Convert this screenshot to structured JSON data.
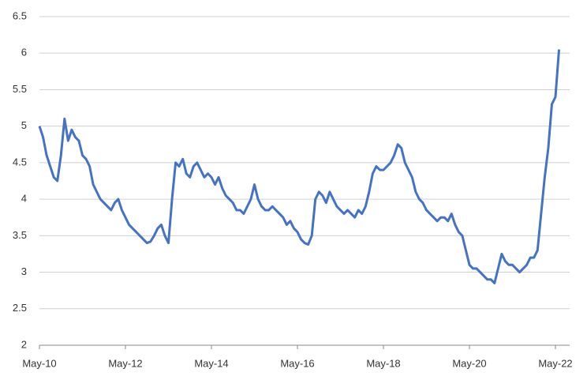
{
  "chart_data": {
    "type": "line",
    "categories": [
      "May-10",
      null,
      null,
      null,
      null,
      null,
      null,
      null,
      null,
      null,
      null,
      null,
      null,
      null,
      null,
      null,
      null,
      null,
      null,
      null,
      null,
      null,
      null,
      null,
      "May-12",
      null,
      null,
      null,
      null,
      null,
      null,
      null,
      null,
      null,
      null,
      null,
      null,
      null,
      null,
      null,
      null,
      null,
      null,
      null,
      null,
      null,
      null,
      null,
      "May-14",
      null,
      null,
      null,
      null,
      null,
      null,
      null,
      null,
      null,
      null,
      null,
      null,
      null,
      null,
      null,
      null,
      null,
      null,
      null,
      null,
      null,
      null,
      null,
      "May-16",
      null,
      null,
      null,
      null,
      null,
      null,
      null,
      null,
      null,
      null,
      null,
      null,
      null,
      null,
      null,
      null,
      null,
      null,
      null,
      null,
      null,
      null,
      null,
      "May-18",
      null,
      null,
      null,
      null,
      null,
      null,
      null,
      null,
      null,
      null,
      null,
      null,
      null,
      null,
      null,
      null,
      null,
      null,
      null,
      null,
      null,
      null,
      null,
      "May-20",
      null,
      null,
      null,
      null,
      null,
      null,
      null,
      null,
      null,
      null,
      null,
      null,
      null,
      null,
      null,
      null,
      null,
      null,
      null,
      null,
      null,
      null,
      null,
      "May-22",
      null
    ],
    "values": [
      5.0,
      4.85,
      4.6,
      4.45,
      4.3,
      4.25,
      4.6,
      5.1,
      4.8,
      4.95,
      4.85,
      4.8,
      4.6,
      4.55,
      4.45,
      4.2,
      4.1,
      4.0,
      3.95,
      3.9,
      3.85,
      3.95,
      4.0,
      3.85,
      3.75,
      3.65,
      3.6,
      3.55,
      3.5,
      3.45,
      3.4,
      3.42,
      3.5,
      3.6,
      3.65,
      3.5,
      3.4,
      4.0,
      4.5,
      4.45,
      4.55,
      4.35,
      4.3,
      4.45,
      4.5,
      4.4,
      4.3,
      4.35,
      4.3,
      4.2,
      4.3,
      4.15,
      4.05,
      4.0,
      3.95,
      3.85,
      3.85,
      3.8,
      3.9,
      4.0,
      4.2,
      4.0,
      3.9,
      3.85,
      3.85,
      3.9,
      3.85,
      3.8,
      3.75,
      3.65,
      3.7,
      3.6,
      3.55,
      3.45,
      3.4,
      3.38,
      3.5,
      4.0,
      4.1,
      4.05,
      3.95,
      4.1,
      4.0,
      3.9,
      3.85,
      3.8,
      3.85,
      3.8,
      3.75,
      3.85,
      3.8,
      3.9,
      4.1,
      4.35,
      4.45,
      4.4,
      4.4,
      4.45,
      4.5,
      4.6,
      4.75,
      4.7,
      4.5,
      4.4,
      4.3,
      4.1,
      4.0,
      3.95,
      3.85,
      3.8,
      3.75,
      3.7,
      3.75,
      3.75,
      3.7,
      3.8,
      3.65,
      3.55,
      3.5,
      3.3,
      3.1,
      3.05,
      3.05,
      3.0,
      2.95,
      2.9,
      2.9,
      2.85,
      3.05,
      3.25,
      3.15,
      3.1,
      3.1,
      3.05,
      3.0,
      3.05,
      3.1,
      3.2,
      3.2,
      3.3,
      3.8,
      4.3,
      4.7,
      5.3,
      5.4,
      6.05
    ],
    "color": "#4472c4",
    "ylim": [
      2,
      6.5
    ],
    "yticks": [
      2,
      2.5,
      3,
      3.5,
      4,
      4.5,
      5,
      5.5,
      6,
      6.5
    ],
    "grid": true
  }
}
